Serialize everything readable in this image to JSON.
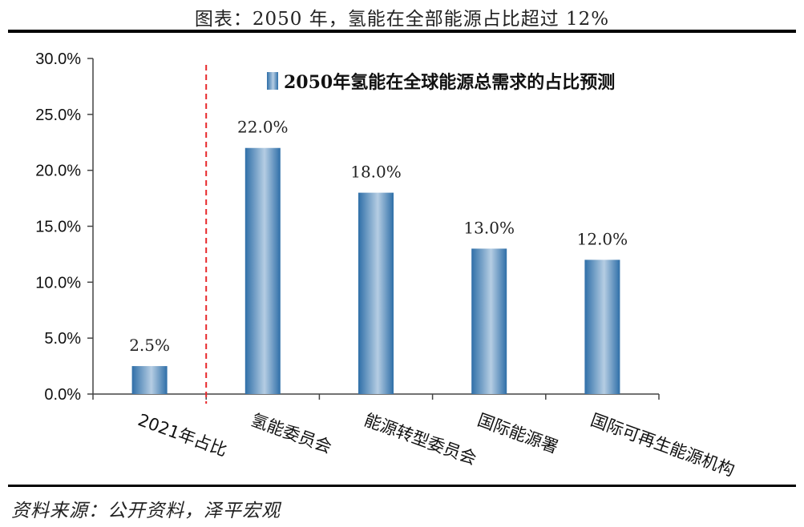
{
  "figure_title": "图表：2050 年，氢能在全部能源占比超过 12%",
  "source_text": "资料来源：公开资料，泽平宏观",
  "colors": {
    "bar_dark": "#2f6fa8",
    "bar_light": "#b5cde3",
    "divider": "#e8282b",
    "axis": "#444444"
  },
  "chart_data": {
    "type": "bar",
    "title": "",
    "legend": [
      "2050年氢能在全球能源总需求的占比预测"
    ],
    "legend_position": "top-right",
    "categories": [
      "2021年占比",
      "氢能委员会",
      "能源转型委员会",
      "国际能源署",
      "国际可再生能源机构"
    ],
    "values": [
      2.5,
      22.0,
      18.0,
      13.0,
      12.0
    ],
    "data_labels": [
      "2.5%",
      "22.0%",
      "18.0%",
      "13.0%",
      "12.0%"
    ],
    "ylim": [
      0,
      30
    ],
    "yticks": [
      "0.0%",
      "5.0%",
      "10.0%",
      "15.0%",
      "20.0%",
      "25.0%",
      "30.0%"
    ],
    "xlabel": "",
    "ylabel": "",
    "grid": false,
    "divider_after_category": 0
  }
}
